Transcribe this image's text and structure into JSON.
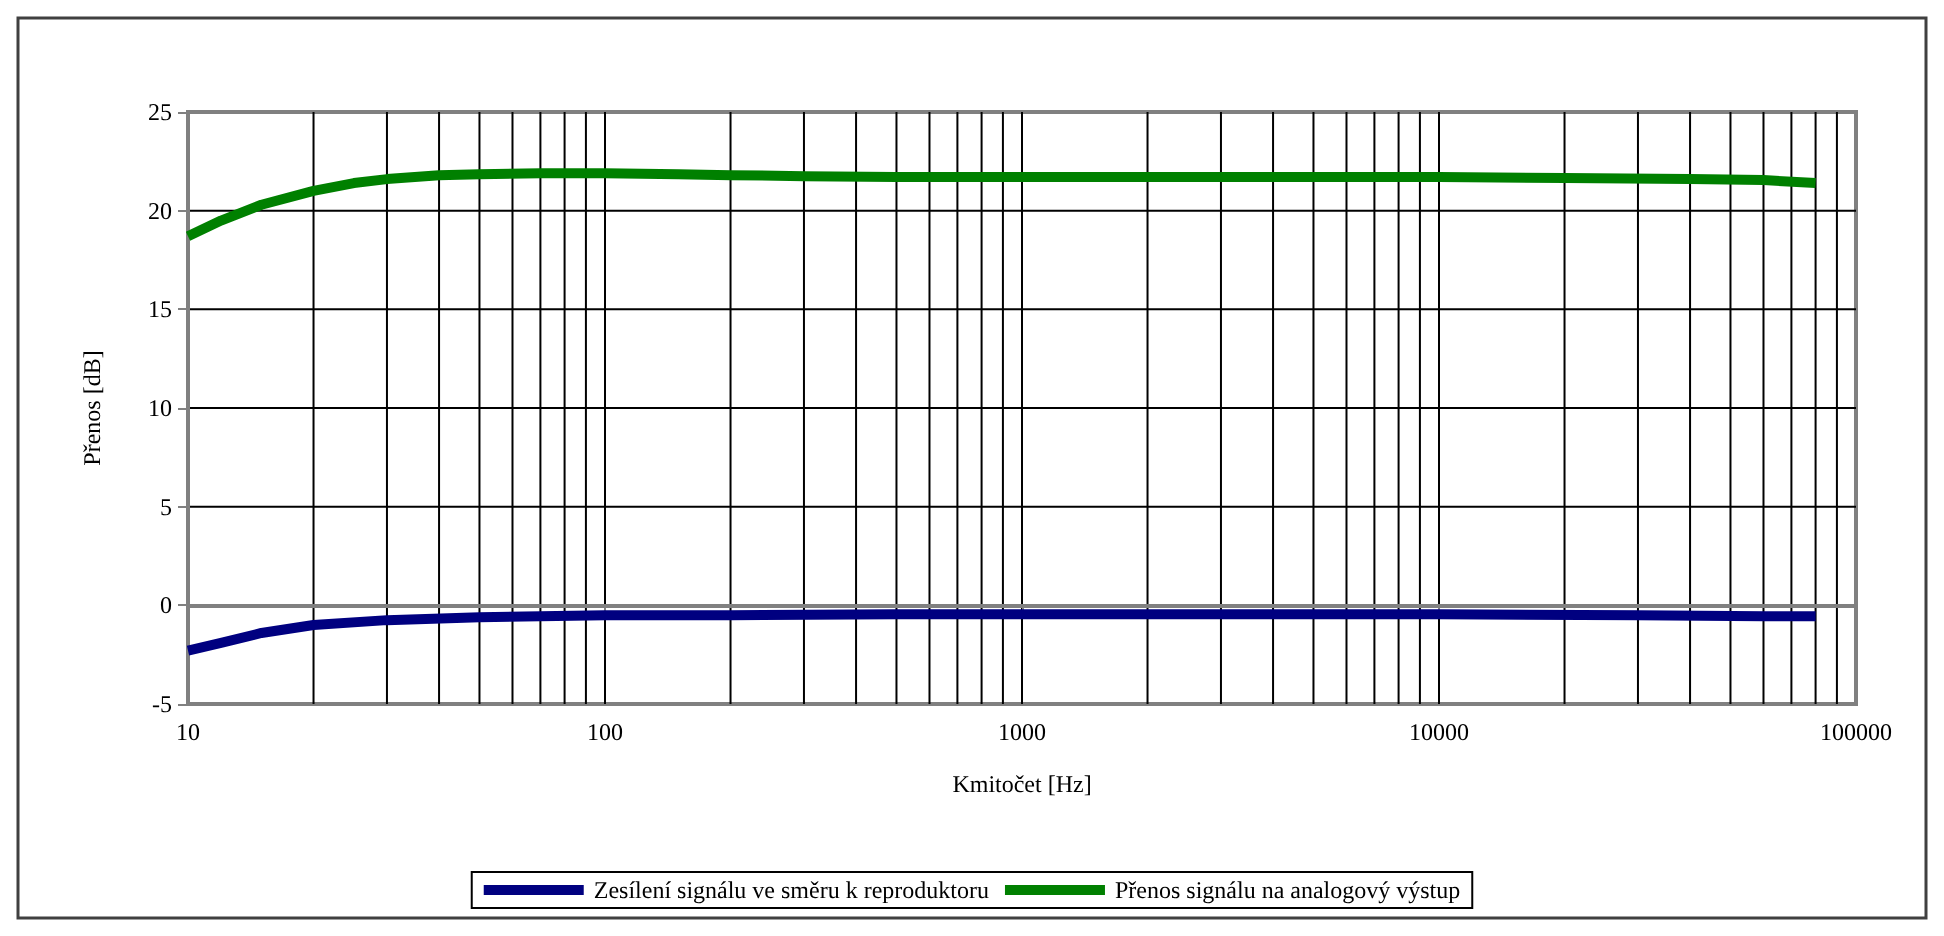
{
  "chart_data": {
    "type": "line",
    "xlabel": "Kmitočet [Hz]",
    "ylabel": "Přenos [dB]",
    "log": "x",
    "grid": true,
    "legend": "bottom",
    "marker": "none",
    "line_style": "solid",
    "xlim": [
      10,
      100000
    ],
    "xticks": [
      10,
      100,
      1000,
      10000,
      100000
    ],
    "ylim": [
      -5,
      25
    ],
    "yticks": [
      -5,
      0,
      5,
      10,
      15,
      20,
      25
    ],
    "series": [
      {
        "name": "Zesílení signálu ve směru k reproduktoru",
        "color": "#000080",
        "x": [
          10,
          12,
          15,
          20,
          30,
          50,
          100,
          200,
          500,
          1000,
          3000,
          10000,
          30000,
          60000,
          80000
        ],
        "values": [
          -2.3,
          -1.9,
          -1.4,
          -1.0,
          -0.75,
          -0.6,
          -0.5,
          -0.5,
          -0.45,
          -0.45,
          -0.45,
          -0.45,
          -0.5,
          -0.55,
          -0.55
        ]
      },
      {
        "name": "Přenos signálu na analogový výstup",
        "color": "#008000",
        "x": [
          10,
          12,
          15,
          20,
          25,
          30,
          40,
          50,
          70,
          100,
          150,
          200,
          300,
          500,
          1000,
          2000,
          5000,
          10000,
          20000,
          40000,
          60000,
          80000
        ],
        "values": [
          18.7,
          19.5,
          20.3,
          21.0,
          21.4,
          21.6,
          21.8,
          21.85,
          21.9,
          21.9,
          21.85,
          21.8,
          21.75,
          21.7,
          21.7,
          21.7,
          21.7,
          21.7,
          21.65,
          21.6,
          21.55,
          21.4
        ]
      }
    ]
  }
}
